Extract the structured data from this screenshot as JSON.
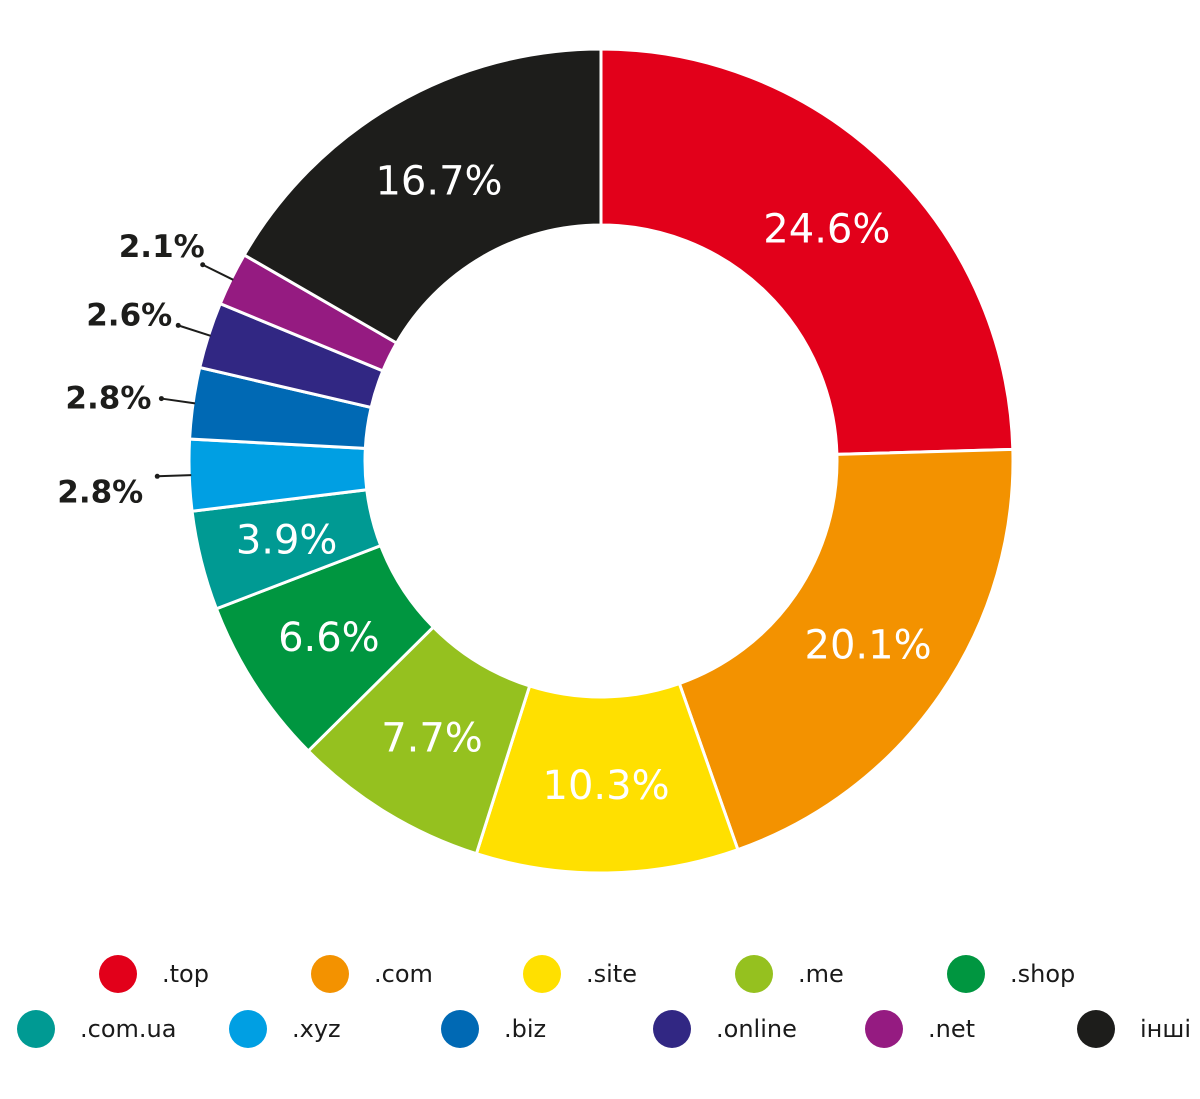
{
  "chart_data": {
    "type": "pie",
    "donut": true,
    "legend_position": "bottom",
    "slices": [
      {
        "label": ".top",
        "value": 24.6,
        "value_label": "24.6%",
        "color": "#e2001a"
      },
      {
        "label": ".com",
        "value": 20.1,
        "value_label": "20.1%",
        "color": "#f39200"
      },
      {
        "label": ".site",
        "value": 10.3,
        "value_label": "10.3%",
        "color": "#ffe000"
      },
      {
        "label": ".me",
        "value": 7.7,
        "value_label": "7.7%",
        "color": "#95c11f"
      },
      {
        "label": ".shop",
        "value": 6.6,
        "value_label": "6.6%",
        "color": "#009640"
      },
      {
        "label": ".com.ua",
        "value": 3.9,
        "value_label": "3.9%",
        "color": "#009a93"
      },
      {
        "label": ".xyz",
        "value": 2.8,
        "value_label": "2.8%",
        "color": "#009fe3"
      },
      {
        "label": ".biz",
        "value": 2.8,
        "value_label": "2.8%",
        "color": "#0069b4"
      },
      {
        "label": ".online",
        "value": 2.6,
        "value_label": "2.6%",
        "color": "#312783"
      },
      {
        "label": ".net",
        "value": 2.1,
        "value_label": "2.1%",
        "color": "#951b81"
      },
      {
        "label": "інші",
        "value": 16.7,
        "value_label": "16.7%",
        "color": "#1d1d1b"
      }
    ]
  }
}
